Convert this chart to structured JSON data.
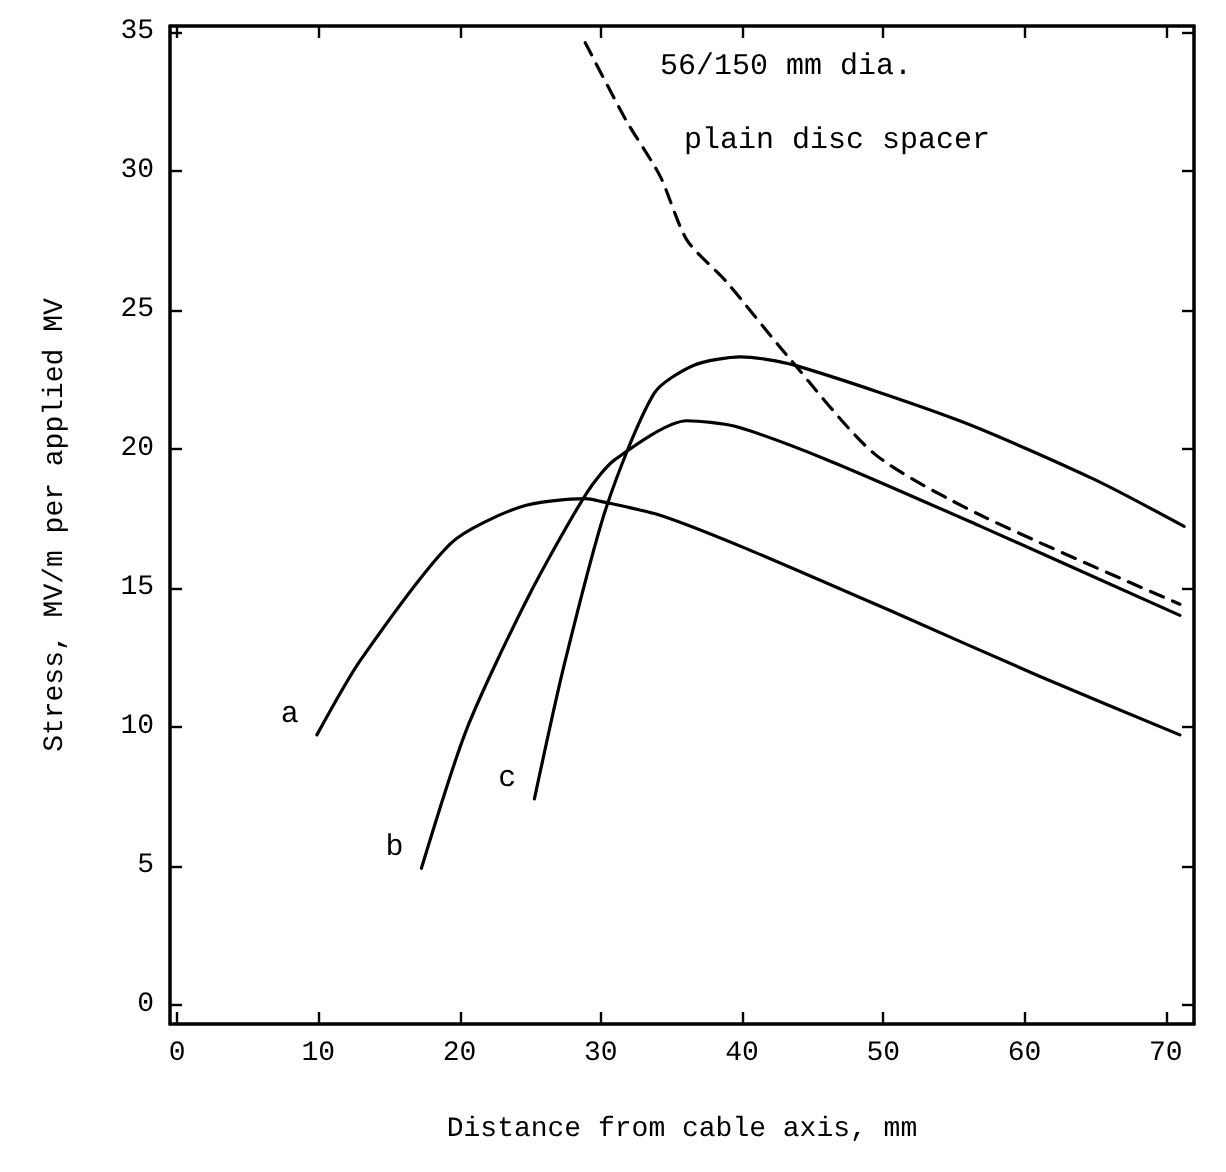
{
  "chart_data": {
    "type": "line",
    "xlabel": "Distance from cable axis, mm",
    "ylabel": "Stress, MV/m per applied MV",
    "xlim": [
      -0.5,
      72
    ],
    "xticks": [
      0,
      10,
      20,
      30,
      40,
      50,
      60,
      70
    ],
    "ylim": [
      -0.7,
      35.2
    ],
    "yticks": [
      0,
      5,
      10,
      15,
      20,
      25,
      30,
      35
    ],
    "grid": false,
    "marker": "none",
    "series": [
      {
        "name": "a",
        "color": "#000000",
        "line_style": "solid",
        "x": [
          9.9,
          13.0,
          19.4,
          24.3,
          28.9,
          30.0,
          34.2,
          40.3,
          50.8,
          61.1,
          71.0
        ],
        "values": [
          9.7,
          12.4,
          16.6,
          17.9,
          18.2,
          18.1,
          17.6,
          16.4,
          14.1,
          11.8,
          9.7
        ]
      },
      {
        "name": "b",
        "color": "#000000",
        "line_style": "solid",
        "x": [
          17.3,
          20.5,
          24.8,
          29.0,
          31.0,
          36.1,
          39.5,
          46.0,
          56.9,
          71.0
        ],
        "values": [
          4.9,
          9.9,
          14.6,
          18.4,
          19.6,
          21.0,
          20.8,
          19.6,
          17.2,
          14.0
        ]
      },
      {
        "name": "c",
        "color": "#000000",
        "line_style": "solid",
        "x": [
          25.3,
          27.4,
          30.4,
          33.8,
          36.6,
          39.9,
          43.7,
          55.4,
          64.9,
          71.3
        ],
        "values": [
          7.4,
          12.2,
          17.9,
          22.0,
          23.0,
          23.3,
          23.0,
          21.0,
          18.9,
          17.2
        ]
      },
      {
        "color": "#000000",
        "line_style": "dashed",
        "x": [
          28.9,
          31.8,
          34.2,
          36.1,
          38.9,
          43.1,
          49.4,
          56.9,
          71.0
        ],
        "values": [
          34.6,
          31.8,
          29.8,
          27.5,
          26.0,
          23.4,
          19.8,
          17.6,
          14.4
        ]
      }
    ],
    "annotations": [
      "56/150 mm dia.",
      "plain disc spacer"
    ]
  }
}
